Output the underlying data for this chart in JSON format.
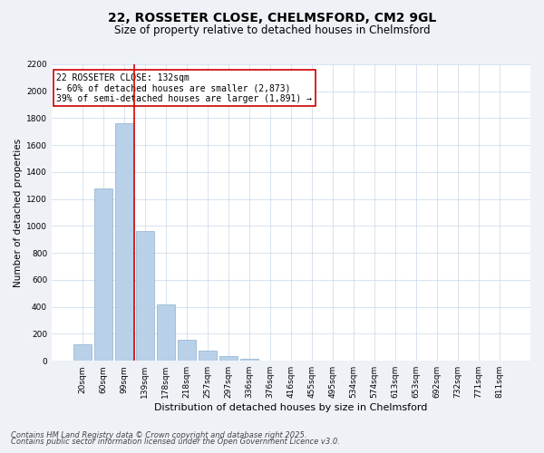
{
  "title1": "22, ROSSETER CLOSE, CHELMSFORD, CM2 9GL",
  "title2": "Size of property relative to detached houses in Chelmsford",
  "xlabel": "Distribution of detached houses by size in Chelmsford",
  "ylabel": "Number of detached properties",
  "categories": [
    "20sqm",
    "60sqm",
    "99sqm",
    "139sqm",
    "178sqm",
    "218sqm",
    "257sqm",
    "297sqm",
    "336sqm",
    "376sqm",
    "416sqm",
    "455sqm",
    "495sqm",
    "534sqm",
    "574sqm",
    "613sqm",
    "653sqm",
    "692sqm",
    "732sqm",
    "771sqm",
    "811sqm"
  ],
  "values": [
    120,
    1280,
    1760,
    960,
    420,
    155,
    75,
    35,
    15,
    0,
    0,
    0,
    0,
    0,
    0,
    0,
    0,
    0,
    0,
    0,
    0
  ],
  "bar_color": "#b8d0e8",
  "bar_edge_color": "#90b0cc",
  "vline_color": "#dd0000",
  "ylim": [
    0,
    2200
  ],
  "yticks": [
    0,
    200,
    400,
    600,
    800,
    1000,
    1200,
    1400,
    1600,
    1800,
    2000,
    2200
  ],
  "annotation_text": "22 ROSSETER CLOSE: 132sqm\n← 60% of detached houses are smaller (2,873)\n39% of semi-detached houses are larger (1,891) →",
  "annotation_box_color": "#ffffff",
  "annotation_box_edge": "#cc0000",
  "footer1": "Contains HM Land Registry data © Crown copyright and database right 2025.",
  "footer2": "Contains public sector information licensed under the Open Government Licence v3.0.",
  "bg_color": "#eef2f7",
  "plot_bg_color": "#ffffff",
  "grid_color": "#c8d8e8",
  "title1_fontsize": 10,
  "title2_fontsize": 8.5,
  "xlabel_fontsize": 8,
  "ylabel_fontsize": 7.5,
  "tick_fontsize": 6.5,
  "annotation_fontsize": 7,
  "footer_fontsize": 6
}
